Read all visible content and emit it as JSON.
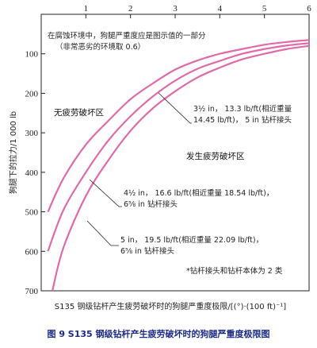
{
  "chart_data": {
    "type": "line",
    "xlabel": "S135 钢级钻杆产生疲劳破坏时的狗腿严重度极限/[(°)·(100 ft)⁻¹]",
    "ylabel": "狗腿下的拉力/1 000 lb",
    "xlim": [
      0,
      6
    ],
    "ylim": [
      700,
      0
    ],
    "x_ticks": [
      "1",
      "2",
      "3",
      "4",
      "5",
      "6"
    ],
    "y_ticks": [
      "100",
      "200",
      "300",
      "400",
      "500",
      "600",
      "700"
    ],
    "x_axis_position": "top",
    "y_axis_inverted": true,
    "grid": false,
    "series": [
      {
        "x": [
          0.15,
          0.5,
          1,
          1.5,
          2,
          2.5,
          3,
          3.5,
          4,
          4.5,
          5,
          5.5,
          6
        ],
        "y": [
          500,
          415,
          330,
          270,
          215,
          175,
          140,
          117,
          100,
          88,
          77,
          70,
          65
        ]
      },
      {
        "x": [
          0.15,
          0.5,
          1,
          1.5,
          2,
          2.5,
          3,
          3.5,
          4,
          4.5,
          5,
          5.5,
          6
        ],
        "y": [
          600,
          495,
          400,
          320,
          258,
          208,
          168,
          138,
          118,
          100,
          88,
          79,
          73
        ]
      },
      {
        "x": [
          0.25,
          0.5,
          1,
          1.5,
          2,
          2.5,
          3,
          3.5,
          4,
          4.5,
          5,
          5.5,
          6
        ],
        "y": [
          700,
          590,
          460,
          370,
          295,
          238,
          195,
          160,
          135,
          114,
          100,
          88,
          80
        ]
      }
    ],
    "annotations": [
      {
        "lines": [
          "在腐蚀环境中，狗腿严重度应是图示值的一部分",
          "（非常恶劣的环境取 0.6）"
        ]
      },
      {
        "lines": [
          "3½ in，  13.3 lb/ft(相近重量",
          "14.45 lb/ft)，  5 in 钻杆接头"
        ]
      },
      {
        "lines": [
          "4½ in，  16.6 lb/ft(相近重量 18.54 lb/ft)，",
          "6⅝ in 钻杆接头"
        ]
      },
      {
        "lines": [
          "5 in，  19.5 lb/ft(相近重量 22.09 lb/ft)，",
          "6⅝ in 钻杆接头"
        ]
      },
      {
        "lines": [
          "*钻杆接头和钻杆本体为 2 类"
        ]
      }
    ],
    "regions": [
      "无疲劳破坏区",
      "发生疲劳破坏区"
    ]
  },
  "caption": "图 9   S135 钢级钻杆产生疲劳破坏时的狗腿严重度极限图"
}
